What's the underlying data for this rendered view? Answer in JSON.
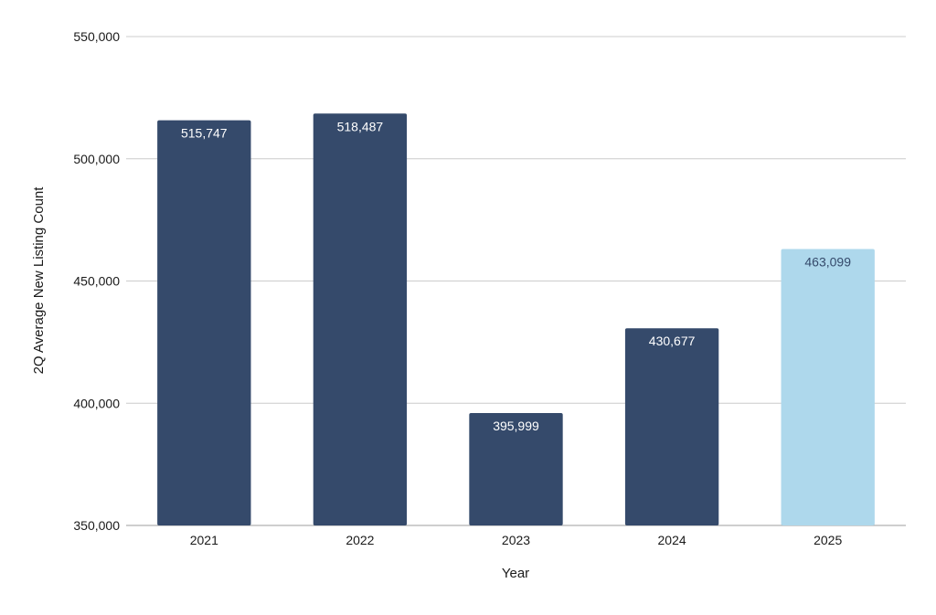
{
  "chart_data": {
    "type": "bar",
    "title": "",
    "xlabel": "Year",
    "ylabel": "2Q Average New Listing Count",
    "categories": [
      "2021",
      "2022",
      "2023",
      "2024",
      "2025"
    ],
    "values": [
      515747,
      518487,
      395999,
      430677,
      463099
    ],
    "value_labels": [
      "515,747",
      "518,487",
      "395,999",
      "430,677",
      "463,099"
    ],
    "ylim": [
      350000,
      550000
    ],
    "yticks": [
      350000,
      400000,
      450000,
      500000,
      550000
    ],
    "ytick_labels": [
      "350,000",
      "400,000",
      "450,000",
      "500,000",
      "550,000"
    ],
    "grid": true,
    "legend": "none",
    "colors": {
      "default_bar": "#354a6b",
      "highlight_bar": "#aed8ec",
      "default_label": "#ffffff",
      "highlight_label": "#354a6b",
      "grid": "#cccccc",
      "axis_text": "#1a1a1a"
    },
    "highlight_index": 4
  }
}
